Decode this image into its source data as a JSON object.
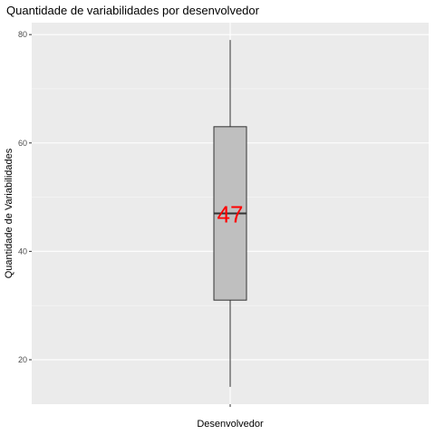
{
  "chart_data": {
    "type": "boxplot",
    "title": "Quantidade de variabilidades por desenvolvedor",
    "xlabel": "Desenvolvedor",
    "ylabel": "Quantidade de Variabilidades",
    "ylim": [
      11.8,
      82.2
    ],
    "yticks": [
      20,
      40,
      60,
      80
    ],
    "grid": true,
    "legend": "none",
    "box": {
      "min": 15,
      "q1": 31,
      "median": 47,
      "q3": 63,
      "max": 79
    },
    "annotation": {
      "text": "47",
      "value": 47
    },
    "colors": {
      "panel": "#ebebeb",
      "grid_major": "#ffffff",
      "box_fill": "#bfbfbf",
      "box_line": "#333333",
      "annotation": "#ff0000"
    }
  }
}
